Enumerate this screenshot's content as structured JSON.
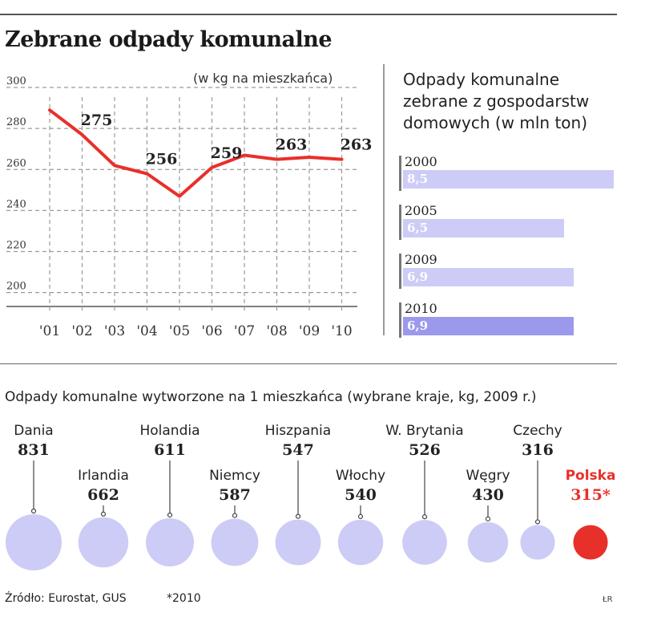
{
  "header": {
    "title": "Zebrane odpady komunalne"
  },
  "line_chart": {
    "unit": "(w kg na mieszkańca)",
    "color": "#e8302a"
  },
  "bar_chart": {
    "title_lines": [
      "Odpady komunalne",
      "zebrane z gospodarstw",
      "domowych (w mln ton)"
    ],
    "color_light": "#ccccf7",
    "color_dark": "#9b99ec"
  },
  "bubble_chart": {
    "title": "Odpady komunalne wytworzone na 1 mieszkańca (wybrane kraje, kg, 2009 r.)",
    "bubble_color": "#ccccf7",
    "highlight_color": "#e8302a"
  },
  "footer": {
    "source": "Źródło: Eurostat, GUS",
    "note": "*2010",
    "signature": "ŁR"
  },
  "chart_data": [
    {
      "type": "line",
      "ylabel": "(w kg na mieszkańca)",
      "x": [
        "'01",
        "'02",
        "'03",
        "'04",
        "'05",
        "'06",
        "'07",
        "'08",
        "'09",
        "'10"
      ],
      "y_ticks": [
        300,
        280,
        260,
        240,
        220,
        200
      ],
      "ylim": [
        194,
        300
      ],
      "series": [
        {
          "values": [
            287,
            275,
            260,
            256,
            245,
            259,
            265,
            263,
            264,
            263
          ]
        }
      ],
      "data_labels": [
        {
          "index": 1,
          "text": "275"
        },
        {
          "index": 3,
          "text": "256"
        },
        {
          "index": 5,
          "text": "259"
        },
        {
          "index": 7,
          "text": "263"
        },
        {
          "index": 9,
          "text": "263"
        }
      ],
      "grid": "horizontal-dashed"
    },
    {
      "type": "bar",
      "orientation": "horizontal",
      "title": "Odpady komunalne zebrane z gospodarstw domowych (w mln ton)",
      "categories": [
        "2000",
        "2005",
        "2009",
        "2010"
      ],
      "values": [
        8.5,
        6.5,
        6.9,
        6.9
      ],
      "value_labels": [
        "8,5",
        "6,5",
        "6,9",
        "6,9"
      ],
      "xlim": [
        0,
        8.5
      ]
    },
    {
      "type": "bubble",
      "title": "Odpady komunalne wytworzone na 1 mieszkańca (wybrane kraje, kg, 2009 r.)",
      "categories": [
        "Dania",
        "Irlandia",
        "Holandia",
        "Niemcy",
        "Hiszpania",
        "Włochy",
        "W. Brytania",
        "Węgry",
        "Czechy",
        "Polska"
      ],
      "values": [
        831,
        662,
        611,
        587,
        547,
        540,
        526,
        430,
        316,
        315
      ],
      "value_labels": [
        "831",
        "662",
        "611",
        "587",
        "547",
        "540",
        "526",
        "430",
        "316",
        "315*"
      ],
      "highlight": "Polska"
    }
  ]
}
